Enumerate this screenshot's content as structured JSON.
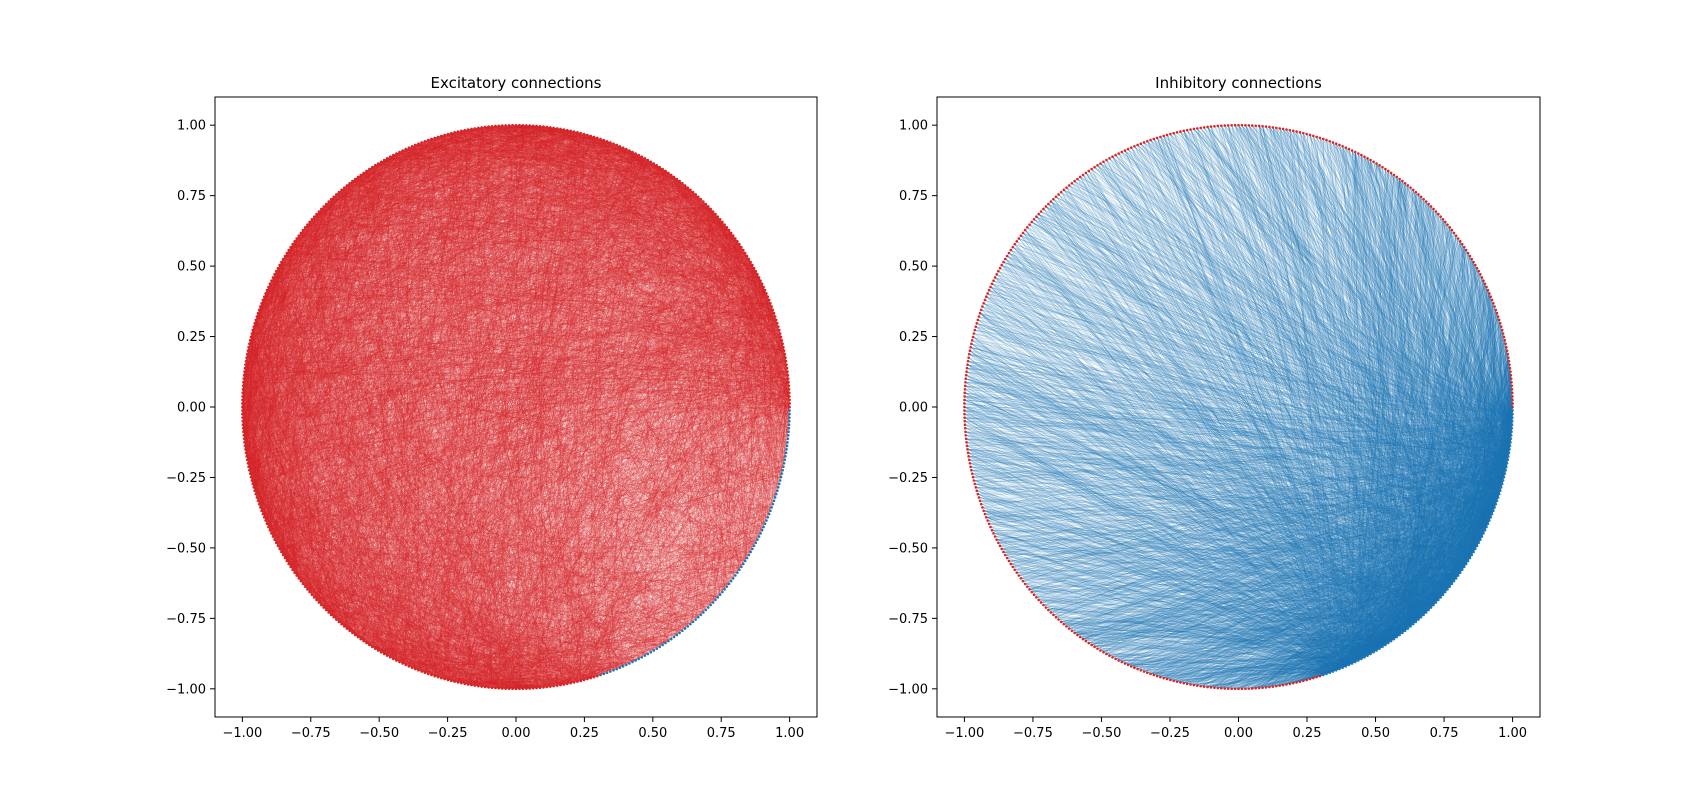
{
  "chart_data": [
    {
      "type": "network",
      "title": "Excitatory connections",
      "xlim": [
        -1.1,
        1.1
      ],
      "ylim": [
        -1.1,
        1.1
      ],
      "xticks": [
        "−1.00",
        "−0.75",
        "−0.50",
        "−0.25",
        "0.00",
        "0.25",
        "0.50",
        "0.75",
        "1.00"
      ],
      "yticks": [
        "−1.00",
        "−0.75",
        "−0.50",
        "−0.25",
        "0.00",
        "0.25",
        "0.50",
        "0.75",
        "1.00"
      ],
      "xtick_values": [
        -1.0,
        -0.75,
        -0.5,
        -0.25,
        0.0,
        0.25,
        0.5,
        0.75,
        1.0
      ],
      "ytick_values": [
        -1.0,
        -0.75,
        -0.5,
        -0.25,
        0.0,
        0.25,
        0.5,
        0.75,
        1.0
      ],
      "grid": false,
      "node_layout": "circle",
      "node_count": 500,
      "excitatory_node_fraction": 0.8,
      "edge_color": "#d62728",
      "edge_source": "excitatory",
      "node_colors": {
        "excitatory": "#d62728",
        "inhibitory": "#1f77b4"
      }
    },
    {
      "type": "network",
      "title": "Inhibitory connections",
      "xlim": [
        -1.1,
        1.1
      ],
      "ylim": [
        -1.1,
        1.1
      ],
      "xticks": [
        "−1.00",
        "−0.75",
        "−0.50",
        "−0.25",
        "0.00",
        "0.25",
        "0.50",
        "0.75",
        "1.00"
      ],
      "yticks": [
        "−1.00",
        "−0.75",
        "−0.50",
        "−0.25",
        "0.00",
        "0.25",
        "0.50",
        "0.75",
        "1.00"
      ],
      "xtick_values": [
        -1.0,
        -0.75,
        -0.5,
        -0.25,
        0.0,
        0.25,
        0.5,
        0.75,
        1.0
      ],
      "ytick_values": [
        -1.0,
        -0.75,
        -0.5,
        -0.25,
        0.0,
        0.25,
        0.5,
        0.75,
        1.0
      ],
      "grid": false,
      "node_layout": "circle",
      "node_count": 500,
      "excitatory_node_fraction": 0.8,
      "edge_color": "#1f77b4",
      "edge_source": "inhibitory",
      "node_colors": {
        "excitatory": "#d62728",
        "inhibitory": "#1f77b4"
      }
    }
  ]
}
